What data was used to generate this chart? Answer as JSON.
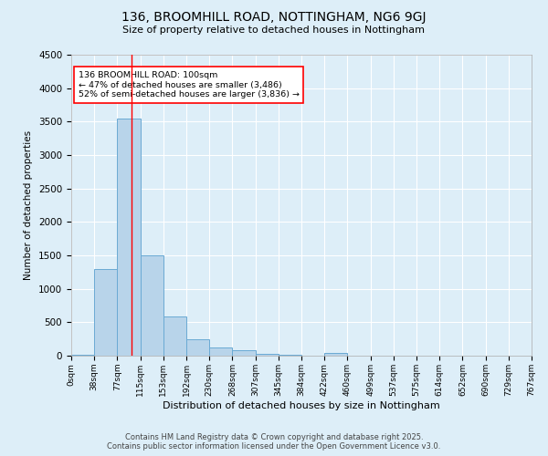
{
  "title_line1": "136, BROOMHILL ROAD, NOTTINGHAM, NG6 9GJ",
  "title_line2": "Size of property relative to detached houses in Nottingham",
  "xlabel": "Distribution of detached houses by size in Nottingham",
  "ylabel": "Number of detached properties",
  "bin_labels": [
    "0sqm",
    "38sqm",
    "77sqm",
    "115sqm",
    "153sqm",
    "192sqm",
    "230sqm",
    "268sqm",
    "307sqm",
    "345sqm",
    "384sqm",
    "422sqm",
    "460sqm",
    "499sqm",
    "537sqm",
    "575sqm",
    "614sqm",
    "652sqm",
    "690sqm",
    "729sqm",
    "767sqm"
  ],
  "bar_values": [
    20,
    1300,
    3550,
    1500,
    590,
    240,
    120,
    80,
    25,
    15,
    5,
    40,
    0,
    0,
    0,
    0,
    0,
    0,
    0,
    0
  ],
  "bar_color": "#b8d4ea",
  "bar_edge_color": "#6aaad4",
  "background_color": "#ddeef8",
  "grid_color": "#ffffff",
  "red_line_x": 100,
  "annotation_box_text": "136 BROOMHILL ROAD: 100sqm\n← 47% of detached houses are smaller (3,486)\n52% of semi-detached houses are larger (3,836) →",
  "footnote_line1": "Contains HM Land Registry data © Crown copyright and database right 2025.",
  "footnote_line2": "Contains public sector information licensed under the Open Government Licence v3.0.",
  "ylim": [
    0,
    4500
  ],
  "bin_width": 38
}
